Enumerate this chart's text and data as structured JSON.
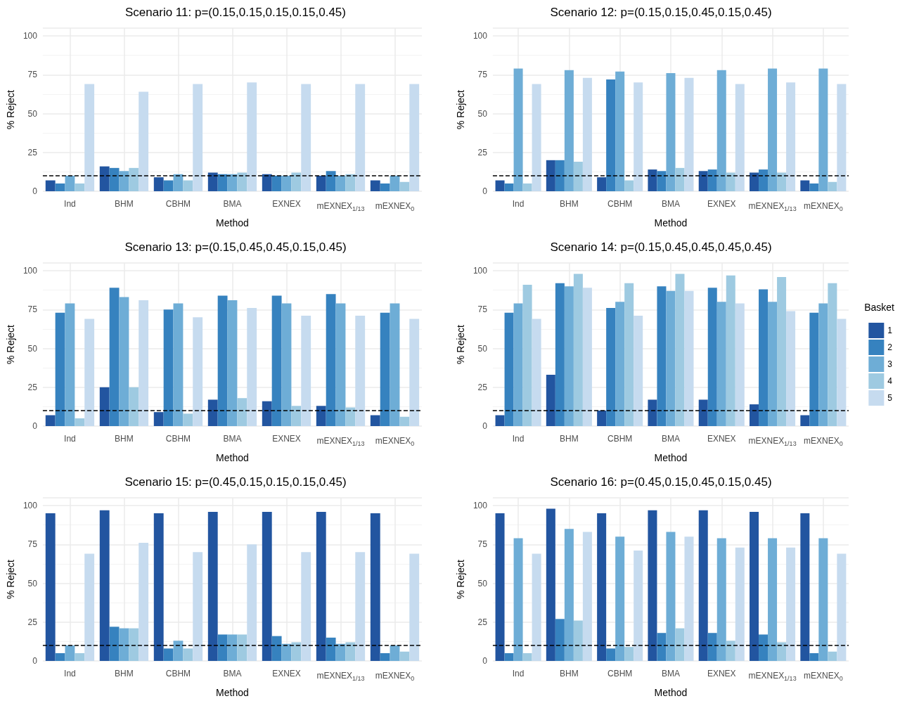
{
  "chart_data": [
    {
      "type": "bar",
      "title": "Scenario 11: p=(0.15,0.15,0.15,0.15,0.45)",
      "xlabel": "Method",
      "ylabel": "% Reject",
      "categories": [
        "Ind",
        "BHM",
        "CBHM",
        "BMA",
        "EXNEX",
        "mEXNEX$_{1/13}$",
        "mEXNEX$_{0}$"
      ],
      "ylim": [
        0,
        105
      ],
      "yticks": [
        0,
        25,
        50,
        75,
        100
      ],
      "grid": true,
      "ref_lines": [
        {
          "axis": "y",
          "value": 10,
          "color": "#000000",
          "line_style": "dashed"
        }
      ],
      "series": [
        {
          "color": "#2255a0",
          "values": [
            7,
            16,
            9,
            12,
            11,
            10,
            7
          ]
        },
        {
          "color": "#3682bf",
          "values": [
            5,
            15,
            7,
            11,
            10,
            13,
            5
          ]
        },
        {
          "color": "#6eadd6",
          "values": [
            10,
            13,
            11,
            11,
            10,
            10,
            10
          ]
        },
        {
          "color": "#9ecae1",
          "values": [
            5,
            15,
            7,
            12,
            12,
            11,
            6
          ]
        },
        {
          "color": "#c6dbef",
          "values": [
            69,
            64,
            69,
            70,
            69,
            69,
            69
          ]
        }
      ]
    },
    {
      "type": "bar",
      "title": "Scenario 12: p=(0.15,0.15,0.45,0.15,0.45)",
      "xlabel": "Method",
      "ylabel": "% Reject",
      "categories": [
        "Ind",
        "BHM",
        "CBHM",
        "BMA",
        "EXNEX",
        "mEXNEX$_{1/13}$",
        "mEXNEX$_{0}$"
      ],
      "ylim": [
        0,
        105
      ],
      "yticks": [
        0,
        25,
        50,
        75,
        100
      ],
      "grid": true,
      "ref_lines": [
        {
          "axis": "y",
          "value": 10,
          "color": "#000000",
          "line_style": "dashed"
        }
      ],
      "series": [
        {
          "color": "#2255a0",
          "values": [
            7,
            20,
            9,
            14,
            13,
            12,
            7
          ]
        },
        {
          "color": "#3682bf",
          "values": [
            5,
            20,
            72,
            13,
            14,
            14,
            5
          ]
        },
        {
          "color": "#6eadd6",
          "values": [
            79,
            78,
            77,
            76,
            78,
            79,
            79
          ]
        },
        {
          "color": "#9ecae1",
          "values": [
            5,
            19,
            7,
            15,
            12,
            12,
            6
          ]
        },
        {
          "color": "#c6dbef",
          "values": [
            69,
            73,
            70,
            73,
            69,
            70,
            69
          ]
        }
      ]
    },
    {
      "type": "bar",
      "title": "Scenario 13: p=(0.15,0.45,0.45,0.15,0.45)",
      "xlabel": "Method",
      "ylabel": "% Reject",
      "categories": [
        "Ind",
        "BHM",
        "CBHM",
        "BMA",
        "EXNEX",
        "mEXNEX$_{1/13}$",
        "mEXNEX$_{0}$"
      ],
      "ylim": [
        0,
        105
      ],
      "yticks": [
        0,
        25,
        50,
        75,
        100
      ],
      "grid": true,
      "ref_lines": [
        {
          "axis": "y",
          "value": 10,
          "color": "#000000",
          "line_style": "dashed"
        }
      ],
      "series": [
        {
          "color": "#2255a0",
          "values": [
            7,
            25,
            9,
            17,
            16,
            13,
            7
          ]
        },
        {
          "color": "#3682bf",
          "values": [
            73,
            89,
            75,
            84,
            84,
            85,
            73
          ]
        },
        {
          "color": "#6eadd6",
          "values": [
            79,
            83,
            79,
            81,
            79,
            79,
            79
          ]
        },
        {
          "color": "#9ecae1",
          "values": [
            5,
            25,
            8,
            18,
            13,
            12,
            6
          ]
        },
        {
          "color": "#c6dbef",
          "values": [
            69,
            81,
            70,
            76,
            71,
            71,
            69
          ]
        }
      ]
    },
    {
      "type": "bar",
      "title": "Scenario 14: p=(0.15,0.45,0.45,0.45,0.45)",
      "xlabel": "Method",
      "ylabel": "% Reject",
      "categories": [
        "Ind",
        "BHM",
        "CBHM",
        "BMA",
        "EXNEX",
        "mEXNEX$_{1/13}$",
        "mEXNEX$_{0}$"
      ],
      "ylim": [
        0,
        105
      ],
      "yticks": [
        0,
        25,
        50,
        75,
        100
      ],
      "grid": true,
      "legend": "right",
      "legend_title": "Basket",
      "ref_lines": [
        {
          "axis": "y",
          "value": 10,
          "color": "#000000",
          "line_style": "dashed"
        }
      ],
      "series": [
        {
          "name": "1",
          "color": "#2255a0",
          "values": [
            7,
            33,
            10,
            17,
            17,
            14,
            7
          ]
        },
        {
          "name": "2",
          "color": "#3682bf",
          "values": [
            73,
            92,
            76,
            90,
            89,
            88,
            73
          ]
        },
        {
          "name": "3",
          "color": "#6eadd6",
          "values": [
            79,
            90,
            80,
            87,
            80,
            80,
            79
          ]
        },
        {
          "name": "4",
          "color": "#9ecae1",
          "values": [
            91,
            98,
            92,
            98,
            97,
            96,
            92
          ]
        },
        {
          "name": "5",
          "color": "#c6dbef",
          "values": [
            69,
            89,
            71,
            87,
            79,
            74,
            69
          ]
        }
      ]
    },
    {
      "type": "bar",
      "title": "Scenario 15: p=(0.45,0.15,0.15,0.15,0.45)",
      "xlabel": "Method",
      "ylabel": "% Reject",
      "categories": [
        "Ind",
        "BHM",
        "CBHM",
        "BMA",
        "EXNEX",
        "mEXNEX$_{1/13}$",
        "mEXNEX$_{0}$"
      ],
      "ylim": [
        0,
        105
      ],
      "yticks": [
        0,
        25,
        50,
        75,
        100
      ],
      "grid": true,
      "ref_lines": [
        {
          "axis": "y",
          "value": 10,
          "color": "#000000",
          "line_style": "dashed"
        }
      ],
      "series": [
        {
          "color": "#2255a0",
          "values": [
            95,
            97,
            95,
            96,
            96,
            96,
            95
          ]
        },
        {
          "color": "#3682bf",
          "values": [
            5,
            22,
            8,
            17,
            16,
            15,
            5
          ]
        },
        {
          "color": "#6eadd6",
          "values": [
            10,
            21,
            13,
            17,
            11,
            11,
            10
          ]
        },
        {
          "color": "#9ecae1",
          "values": [
            5,
            21,
            8,
            17,
            12,
            12,
            6
          ]
        },
        {
          "color": "#c6dbef",
          "values": [
            69,
            76,
            70,
            75,
            70,
            70,
            69
          ]
        }
      ]
    },
    {
      "type": "bar",
      "title": "Scenario 16: p=(0.45,0.15,0.45,0.15,0.45)",
      "xlabel": "Method",
      "ylabel": "% Reject",
      "categories": [
        "Ind",
        "BHM",
        "CBHM",
        "BMA",
        "EXNEX",
        "mEXNEX$_{1/13}$",
        "mEXNEX$_{0}$"
      ],
      "ylim": [
        0,
        105
      ],
      "yticks": [
        0,
        25,
        50,
        75,
        100
      ],
      "grid": true,
      "ref_lines": [
        {
          "axis": "y",
          "value": 10,
          "color": "#000000",
          "line_style": "dashed"
        }
      ],
      "series": [
        {
          "color": "#2255a0",
          "values": [
            95,
            98,
            95,
            97,
            97,
            96,
            95
          ]
        },
        {
          "color": "#3682bf",
          "values": [
            5,
            27,
            8,
            18,
            18,
            17,
            5
          ]
        },
        {
          "color": "#6eadd6",
          "values": [
            79,
            85,
            80,
            83,
            79,
            79,
            79
          ]
        },
        {
          "color": "#9ecae1",
          "values": [
            5,
            26,
            9,
            21,
            13,
            12,
            6
          ]
        },
        {
          "color": "#c6dbef",
          "values": [
            69,
            83,
            71,
            80,
            73,
            73,
            69
          ]
        }
      ]
    }
  ]
}
